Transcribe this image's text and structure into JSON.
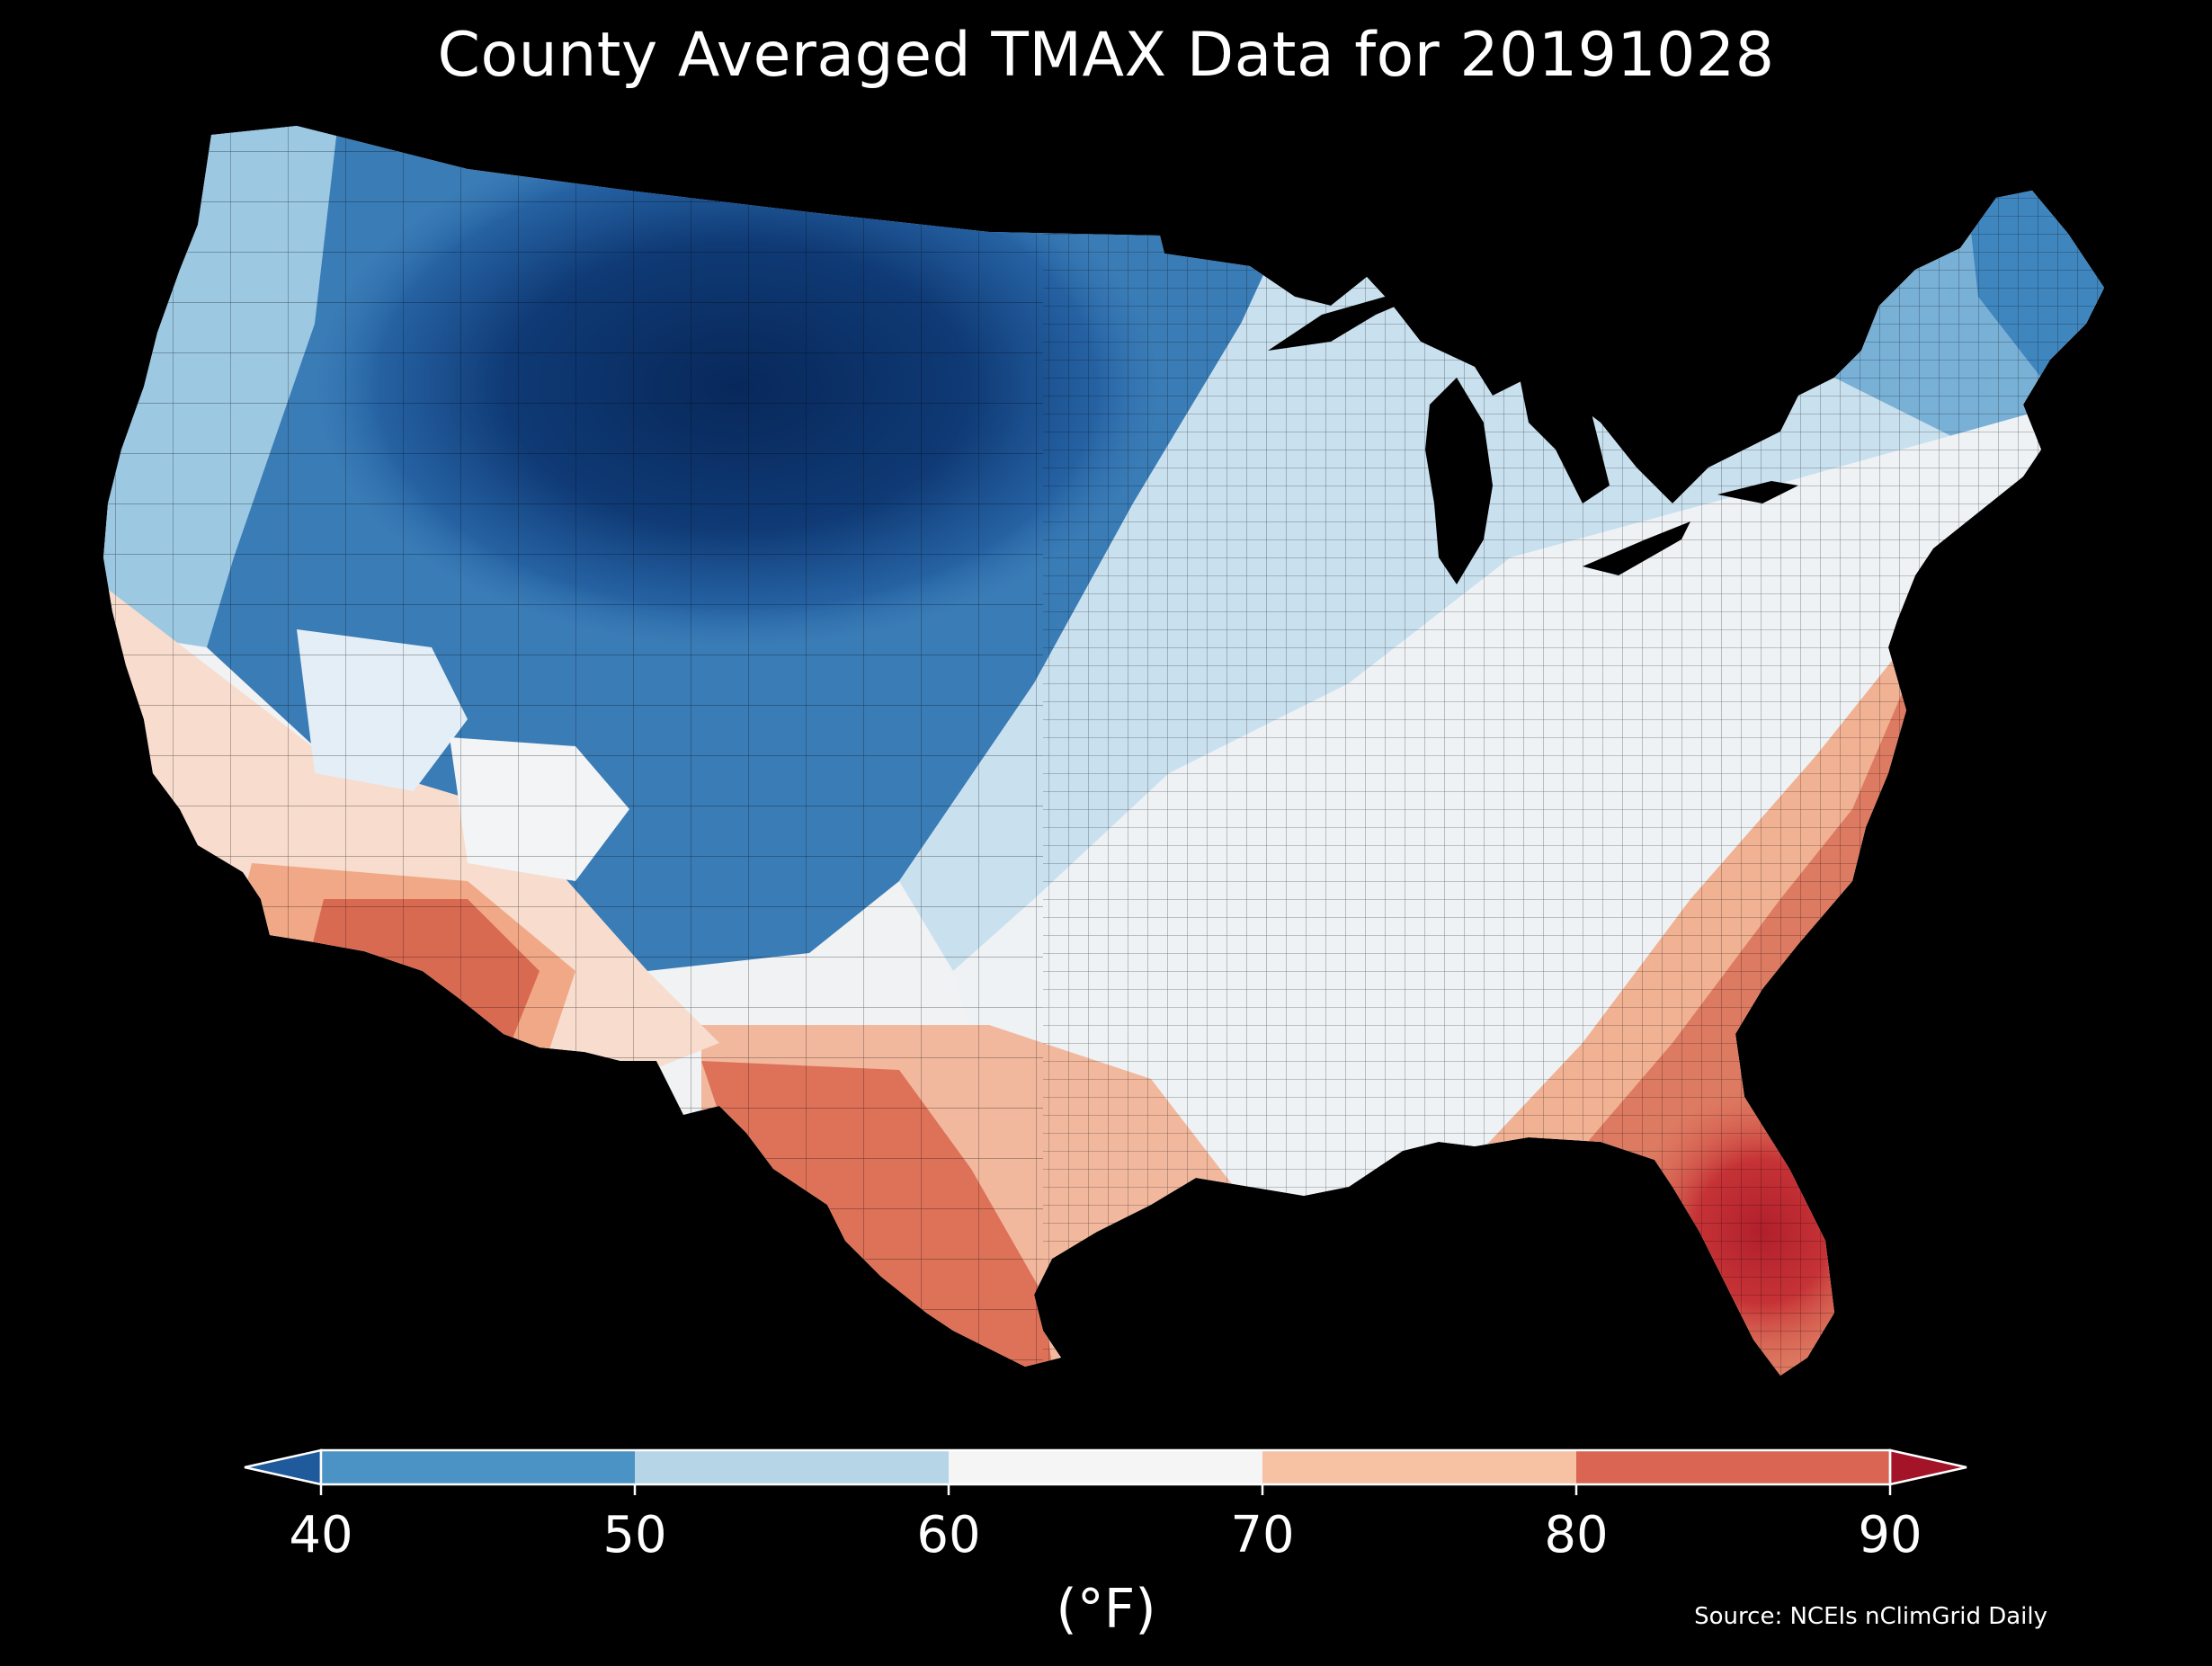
{
  "title": "County Averaged TMAX Data for 20191028",
  "colorbar": {
    "unit": "(°F)",
    "ticks": [
      "40",
      "50",
      "60",
      "70",
      "80",
      "90"
    ],
    "bins": [
      {
        "range": "<40",
        "color": "#1f5a9c"
      },
      {
        "range": "40-50",
        "color": "#4a93c4"
      },
      {
        "range": "50-60",
        "color": "#b6d6e8"
      },
      {
        "range": "60-70",
        "color": "#f5f5f5"
      },
      {
        "range": "70-80",
        "color": "#f7c1a4"
      },
      {
        "range": "80-90",
        "color": "#d96552"
      },
      {
        "range": ">90",
        "color": "#a41429"
      }
    ]
  },
  "source": "Source: NCEIs nClimGrid Daily",
  "palette": {
    "below40": "#0d3066",
    "c45": "#3a7cb6",
    "c55": "#bcd9ea",
    "c65": "#f2f2f2",
    "c75": "#f4b89c",
    "c85": "#d65a4a",
    "above90": "#b5202f"
  }
}
